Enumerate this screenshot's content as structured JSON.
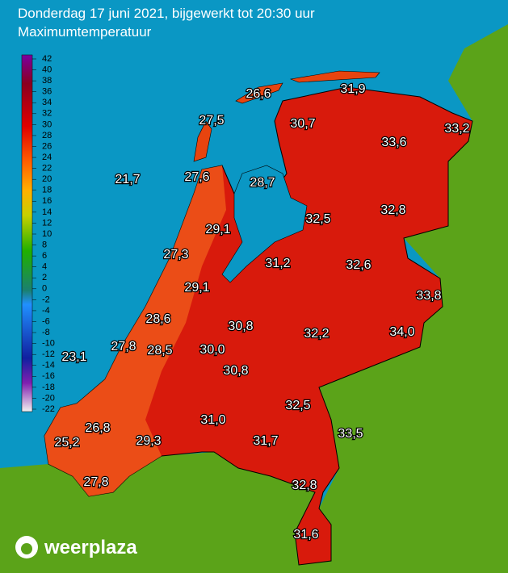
{
  "header": {
    "title": "Donderdag 17 juni 2021, bijgewerkt tot 20:30 uur",
    "subtitle": "Maximumtemperatuur"
  },
  "legend": {
    "ticks": [
      42,
      40,
      38,
      36,
      34,
      32,
      30,
      28,
      26,
      24,
      22,
      20,
      18,
      16,
      14,
      12,
      10,
      8,
      6,
      4,
      2,
      0,
      -2,
      -4,
      -6,
      -8,
      -10,
      -12,
      -14,
      -16,
      -18,
      -20,
      -22
    ]
  },
  "stations": [
    "26,6",
    "31,9",
    "27,5",
    "30,7",
    "33,2",
    "33,6",
    "21,7",
    "27,6",
    "28,7",
    "32,5",
    "32,8",
    "29,1",
    "27,3",
    "31,2",
    "32,6",
    "29,1",
    "33,8",
    "28,6",
    "30,8",
    "32,2",
    "34,0",
    "27,8",
    "28,5",
    "30,0",
    "23,1",
    "30,8",
    "32,5",
    "26,8",
    "31,0",
    "33,5",
    "25,2",
    "29,3",
    "31,7",
    "27,8",
    "32,8",
    "31,6"
  ],
  "logo": {
    "text": "weerplaza"
  }
}
